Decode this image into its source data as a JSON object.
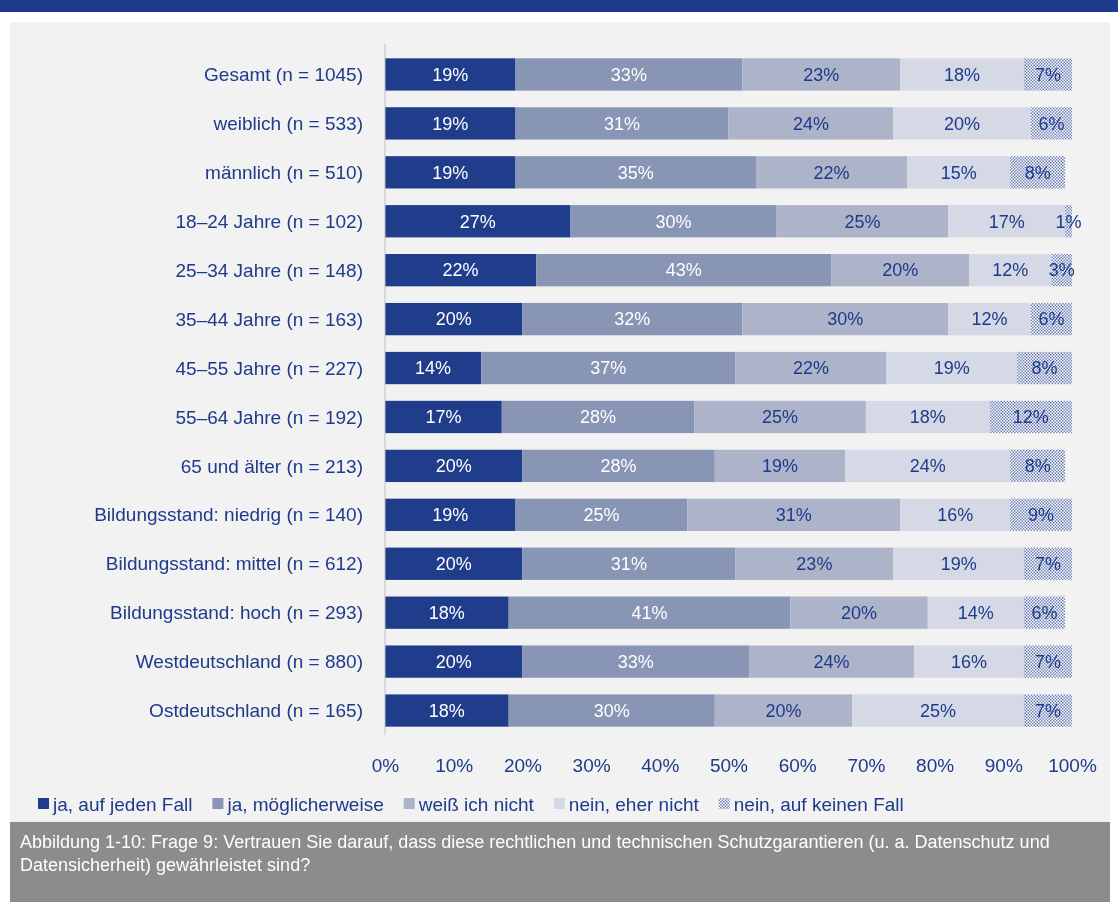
{
  "chart_data": {
    "type": "bar",
    "orientation": "horizontal",
    "stacked": true,
    "grid": false,
    "legend": "bottom",
    "categories": [
      "Gesamt (n = 1045)",
      "weiblich (n = 533)",
      "männlich (n = 510)",
      "18–24 Jahre (n = 102)",
      "25–34 Jahre (n = 148)",
      "35–44 Jahre (n = 163)",
      "45–55 Jahre (n = 227)",
      "55–64 Jahre (n = 192)",
      "65 und älter (n = 213)",
      "Bildungsstand: niedrig  (n = 140)",
      "Bildungsstand: mittel (n = 612)",
      "Bildungsstand: hoch (n = 293)",
      "Westdeutschland (n = 880)",
      "Ostdeutschland (n = 165)"
    ],
    "series": [
      {
        "name": "ja, auf jeden Fall",
        "color": "#203d8c",
        "values": [
          19,
          19,
          19,
          27,
          22,
          20,
          14,
          17,
          20,
          19,
          20,
          18,
          20,
          18
        ],
        "value_labels": [
          "19%",
          "19%",
          "19%",
          "27%",
          "22%",
          "20%",
          "14%",
          "17%",
          "20%",
          "19%",
          "20%",
          "18%",
          "20%",
          "18%"
        ]
      },
      {
        "name": "ja, möglicherweise",
        "color": "#8895b5",
        "values": [
          33,
          31,
          35,
          30,
          43,
          32,
          37,
          28,
          28,
          25,
          31,
          41,
          33,
          30
        ],
        "value_labels": [
          "33%",
          "31%",
          "35%",
          "30%",
          "43%",
          "32%",
          "37%",
          "28%",
          "28%",
          "25%",
          "31%",
          "41%",
          "33%",
          "30%"
        ]
      },
      {
        "name": "weiß ich nicht",
        "color": "#adb3c9",
        "values": [
          23,
          24,
          22,
          25,
          20,
          30,
          22,
          25,
          19,
          31,
          23,
          20,
          24,
          20
        ],
        "value_labels": [
          "23%",
          "24%",
          "22%",
          "25%",
          "20%",
          "30%",
          "22%",
          "25%",
          "19%",
          "31%",
          "23%",
          "20%",
          "24%",
          "20%"
        ]
      },
      {
        "name": "nein, eher nicht",
        "color": "#d5d9e5",
        "values": [
          18,
          20,
          15,
          17,
          12,
          12,
          19,
          18,
          24,
          16,
          19,
          14,
          16,
          25
        ],
        "value_labels": [
          "18%",
          "20%",
          "15%",
          "17%",
          "12%",
          "12%",
          "19%",
          "18%",
          "24%",
          "16%",
          "19%",
          "14%",
          "16%",
          "25%"
        ]
      },
      {
        "name": "nein, auf keinen Fall",
        "color": "#6f82b8",
        "values": [
          7,
          6,
          8,
          1,
          3,
          6,
          8,
          12,
          8,
          9,
          7,
          6,
          7,
          7
        ],
        "value_labels": [
          "7%",
          "6%",
          "8%",
          "1%",
          "3%",
          "6%",
          "8%",
          "12%",
          "8%",
          "9%",
          "7%",
          "6%",
          "7%",
          "7%"
        ]
      }
    ],
    "xlim": [
      0,
      100
    ],
    "xticks": [
      {
        "value": 0,
        "label": "0%"
      },
      {
        "value": 10,
        "label": "10%"
      },
      {
        "value": 20,
        "label": "20%"
      },
      {
        "value": 30,
        "label": "30%"
      },
      {
        "value": 40,
        "label": "40%"
      },
      {
        "value": 50,
        "label": "50%"
      },
      {
        "value": 60,
        "label": "60%"
      },
      {
        "value": 70,
        "label": "70%"
      },
      {
        "value": 80,
        "label": "80%"
      },
      {
        "value": 90,
        "label": "90%"
      },
      {
        "value": 100,
        "label": "100%"
      }
    ],
    "annotations": [
      "Abbildung 1-10: Frage 9: Vertrauen Sie darauf, dass diese rechtlichen und technischen Schutzgarantieren (u. a. Datenschutz und Datensicherheit) gewährleistet sind?"
    ]
  }
}
